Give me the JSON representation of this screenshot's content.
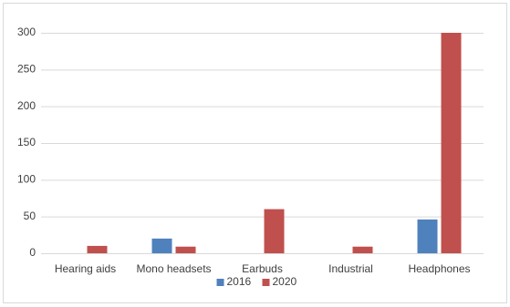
{
  "chart_data": {
    "type": "bar",
    "categories": [
      "Hearing aids",
      "Mono headsets",
      "Earbuds",
      "Industrial",
      "Headphones"
    ],
    "series": [
      {
        "name": "2016",
        "color": "#4f81bd",
        "values": [
          0,
          20,
          0,
          0,
          46
        ]
      },
      {
        "name": "2020",
        "color": "#c0504d",
        "values": [
          10,
          9,
          60,
          9,
          300
        ]
      }
    ],
    "ylim": [
      0,
      300
    ],
    "yticks": [
      0,
      50,
      100,
      150,
      200,
      250,
      300
    ],
    "grid": true,
    "legend": "bottom"
  }
}
